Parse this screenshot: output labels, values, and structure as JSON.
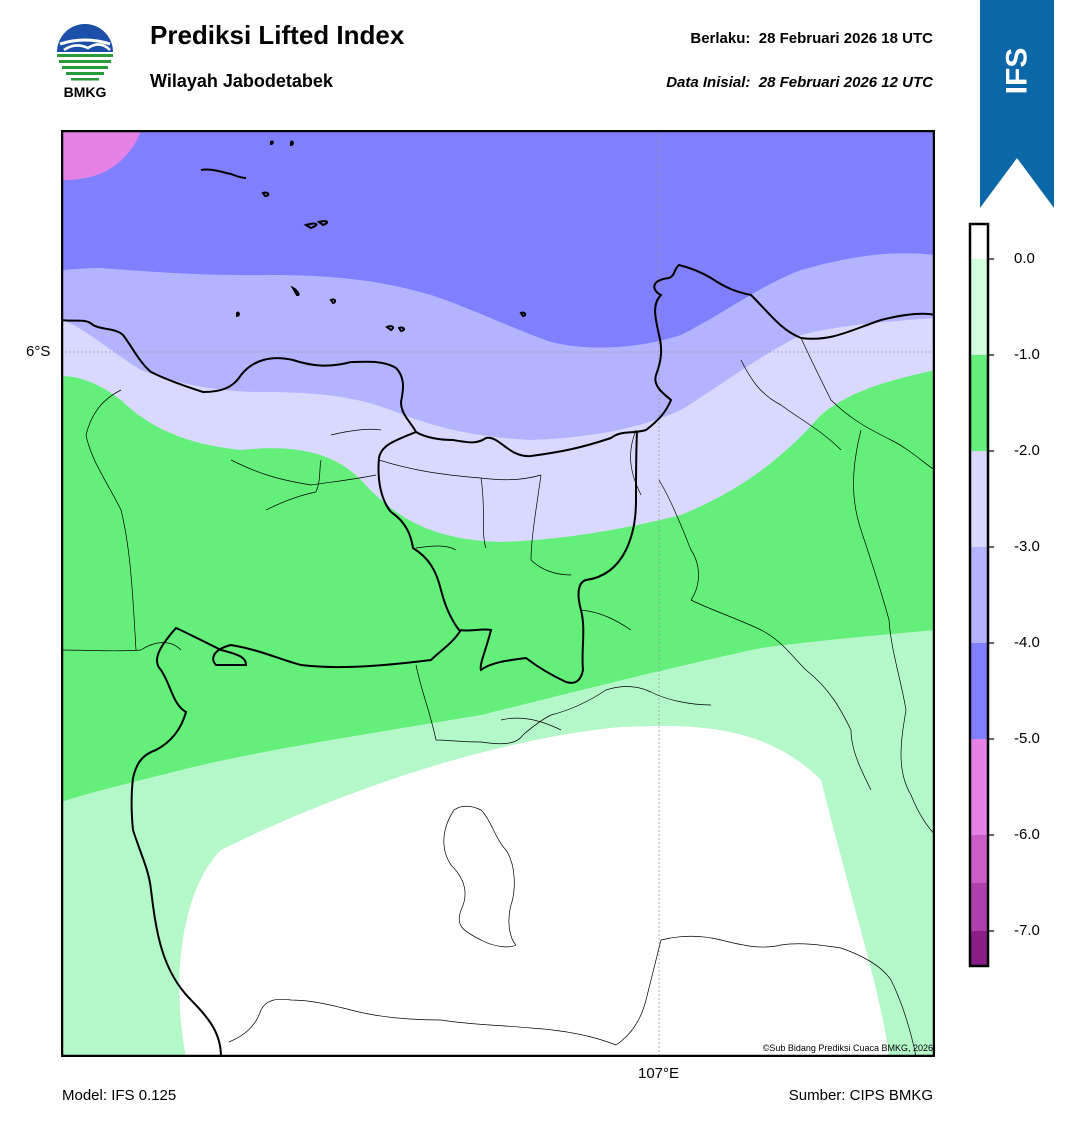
{
  "header": {
    "logo_text": "BMKG",
    "title": "Prediksi Lifted Index",
    "subtitle": "Wilayah Jabodetabek",
    "valid_label": "Berlaku:",
    "valid_value": "28 Februari 2026 18 UTC",
    "init_label": "Data Inisial:",
    "init_value": "28 Februari 2026 12 UTC",
    "model_badge": "IFS"
  },
  "map": {
    "lat_label": "6°S",
    "lon_label": "107°E",
    "credit": "©Sub Bidang Prediksi Cuaca BMKG, 2026",
    "zones": [
      {
        "name": "li -6 to -5",
        "color": "#e682e6"
      },
      {
        "name": "li -5 to -4",
        "color": "#8080ff"
      },
      {
        "name": "li -4 to -3",
        "color": "#b3b3ff"
      },
      {
        "name": "li -3 to -2",
        "color": "#d9d9ff"
      },
      {
        "name": "li -2 to -1",
        "color": "#63ef79"
      },
      {
        "name": "li -1 to 0",
        "color": "#b4f8c9"
      },
      {
        "name": "li above 0",
        "color": "#ffffff"
      }
    ]
  },
  "colorbar": {
    "ticks": [
      "0.0",
      "-1.0",
      "-2.0",
      "-3.0",
      "-4.0",
      "-5.0",
      "-6.0",
      "-7.0"
    ],
    "colors": [
      "#d2ffe0",
      "#63ef79",
      "#d9d9ff",
      "#b3b3ff",
      "#8080ff",
      "#e682e6",
      "#c95cc6",
      "#b03fae",
      "#8a1f87"
    ]
  },
  "footer": {
    "model": "Model: IFS 0.125",
    "source": "Sumber: CIPS BMKG"
  }
}
